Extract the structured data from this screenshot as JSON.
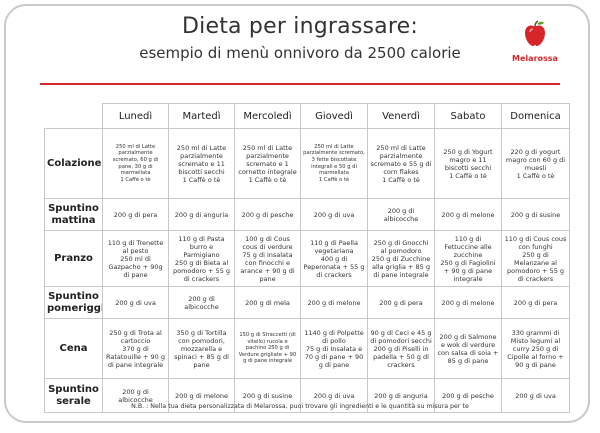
{
  "header": {
    "title": "Dieta per ingrassare:",
    "subtitle": "esempio di menù onnivoro da 2500 calorie",
    "logo_text": "Melarossa"
  },
  "colors": {
    "accent": "#d6262b",
    "border": "#c8c8c8"
  },
  "table": {
    "days": [
      "Lunedì",
      "Martedì",
      "Mercoledì",
      "Giovedì",
      "Venerdì",
      "Sabato",
      "Domenica"
    ],
    "rows": [
      {
        "meal": "Colazione",
        "cells": [
          "250 ml di Latte parzialmente scremato, 60 g di pane, 30 g di marmellata\n1 Caffè o tè",
          "250 ml di Latte parzialmente scremato e 11 biscotti secchi\n1 Caffè o tè",
          "250 ml di Latte parzialmente scremato e 1 cornetto integrale\n1 Caffè o tè",
          "250 ml di Latte parzialmente scremato, 3 fette biscottate integrali e 50 g di marmellata\n1 Caffè o tè",
          "250 ml di Latte parzialmente scremato e 55 g di corn flakes\n1 Caffè o tè",
          "250 g di Yogurt magro e 11 biscotti secchi\n1 Caffè o tè",
          "220 g di yogurt magro con 60 g di muesli\n1 Caffè o tè"
        ]
      },
      {
        "meal": "Spuntino mattina",
        "cells": [
          "200 g di pera",
          "200 g di anguria",
          "200 g di pesche",
          "200 g di uva",
          "200 g di albicocche",
          "200 g di melone",
          "200 g di susine"
        ]
      },
      {
        "meal": "Pranzo",
        "cells": [
          "110 g di Trenette al pesto\n250 ml di Gazpacho + 90g di pane",
          "110 g di Pasta burro e Parmigiano\n250 g di Bieta al pomodoro + 55 g di crackers",
          "100 g di Cous cous di verdure\n75 g di insalata con finocchi e arance + 90 g di pane",
          "110 g di Paella vegetariana\n400 g di Peperonata + 55 g di crackers",
          "250 g di Gnocchi al pomodoro\n250 g di Zucchine alla griglia + 85 g di pane integrale",
          "110 g di Fettuccine alle zucchine\n250 g di Fagiolini + 90 g di pane integrale",
          "110 g di Cous cous con funghi\n250 g di Melanzane al pomodoro + 55 g di crackers"
        ]
      },
      {
        "meal": "Spuntino pomeriggio",
        "cells": [
          "200 g di uva",
          "200 g di albicocche",
          "200 g di mela",
          "200 g di melone",
          "200 g di pera",
          "200 g di melone",
          "200 g di pera"
        ]
      },
      {
        "meal": "Cena",
        "cells": [
          "250 g di Trota al cartoccio\n370 g di Ratatouille + 90 g di pane integrale",
          "350 g di Tortilla con pomodori, mozzarella e spinaci + 85 g di pane",
          "150 g di Straccetti (di vitello) rucola e pachino 250 g di Verdure grigliate + 90 g di pane integrale",
          "1140 g di Polpette di pollo\n75 g di Insalata e 70 g di pane + 90 g di pane",
          "90 g di Ceci e 45 g di pomodori secchi 200 g di Piselli in padella + 50 g di crackers",
          "200 g di Salmone e wok di verdure con salsa di soia + 85 g di pane",
          "330 grammi di Misto legumi al curry 250 g di Cipolle al forno + 90 g di pane"
        ]
      },
      {
        "meal": "Spuntino serale",
        "cells": [
          "200 g di albicocche",
          "200 g di melone",
          "200 g di susine",
          "200 g di uva",
          "200 g di anguria",
          "200 g di pesche",
          "200 g di uva"
        ]
      }
    ]
  },
  "footer": {
    "note": "N.B. : Nella tua dieta personalizzata di Melarossa, puoi trovare gli ingredienti e le quantità su misura per te"
  }
}
